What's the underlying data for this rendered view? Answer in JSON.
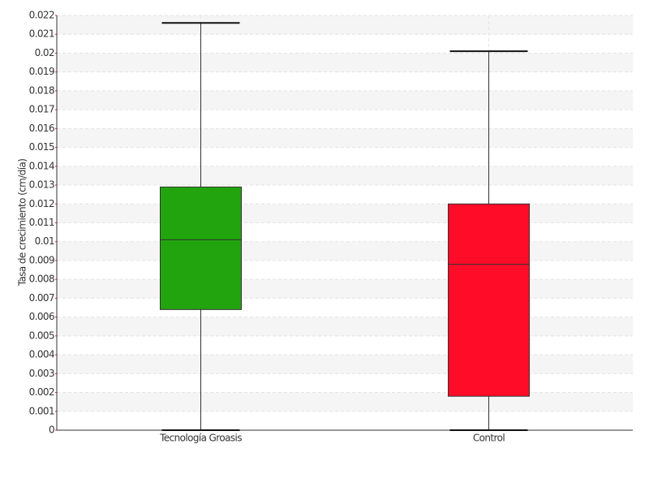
{
  "chart_data": {
    "type": "box",
    "y_label": "Tasa de crecimiento (cm/día)",
    "categories": [
      "Tecnología Groasis",
      "Control"
    ],
    "boxes": [
      {
        "min": 0,
        "q1": 0.0064,
        "median": 0.0101,
        "q3": 0.0129,
        "max": 0.0216,
        "color": "#22a40f"
      },
      {
        "min": 0,
        "q1": 0.0018,
        "median": 0.0088,
        "q3": 0.012,
        "max": 0.0201,
        "color": "#ff0c28"
      }
    ],
    "ylim": [
      0,
      0.022
    ],
    "yticks": [
      0,
      0.001,
      0.002,
      0.003,
      0.004,
      0.005,
      0.006,
      0.007,
      0.008,
      0.009,
      0.01,
      0.011,
      0.012,
      0.013,
      0.014,
      0.015,
      0.016,
      0.017,
      0.018,
      0.019,
      0.02,
      0.021,
      0.022
    ],
    "grid": true
  }
}
